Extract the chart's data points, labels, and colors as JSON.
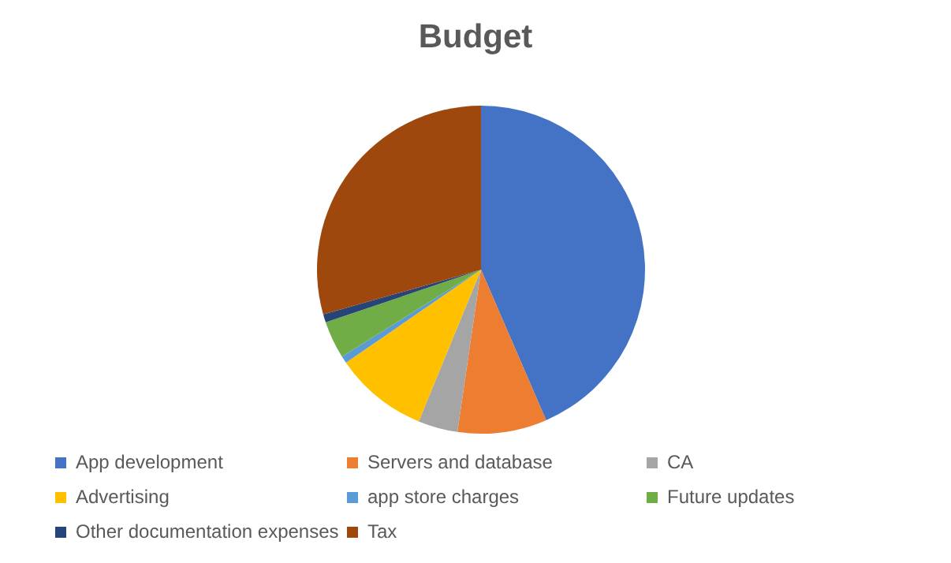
{
  "chart_data": {
    "type": "pie",
    "title": "Budget",
    "categories": [
      "App development",
      "Servers and database",
      "CA",
      "Advertising",
      "app store charges",
      "Future updates",
      "Other documentation expenses",
      "Tax"
    ],
    "values": [
      43.5,
      8.8,
      3.9,
      9.2,
      0.7,
      3.7,
      0.8,
      29.4
    ],
    "colors": [
      "#4472c4",
      "#ed7d31",
      "#a5a5a5",
      "#ffc000",
      "#5b9bd5",
      "#70ad47",
      "#264478",
      "#9e480e"
    ],
    "legend": "bottom"
  }
}
